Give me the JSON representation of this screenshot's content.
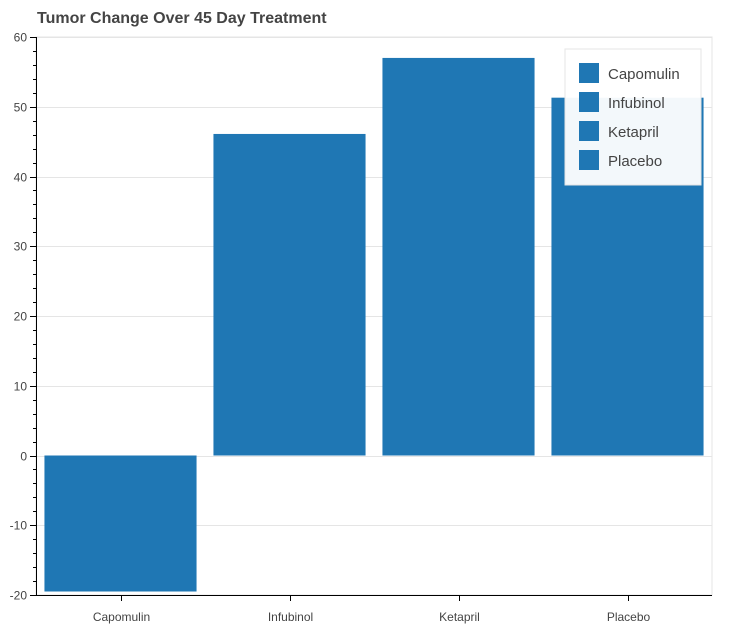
{
  "chart_data": {
    "type": "bar",
    "title": "Tumor Change Over 45 Day Treatment",
    "categories": [
      "Capomulin",
      "Infubinol",
      "Ketapril",
      "Placebo"
    ],
    "values": [
      -19.5,
      46.1,
      57.0,
      51.3
    ],
    "xlabel": "",
    "ylabel": "",
    "ylim": [
      -20,
      60
    ],
    "yticks": [
      -20,
      -10,
      0,
      10,
      20,
      30,
      40,
      50,
      60
    ],
    "grid": true,
    "legend": {
      "placement": "top-right",
      "entries": [
        "Capomulin",
        "Infubinol",
        "Ketapril",
        "Placebo"
      ]
    },
    "colors": {
      "bar": "#1f77b4",
      "grid": "#e5e5e5",
      "axis": "#000000",
      "text": "#444444"
    }
  }
}
